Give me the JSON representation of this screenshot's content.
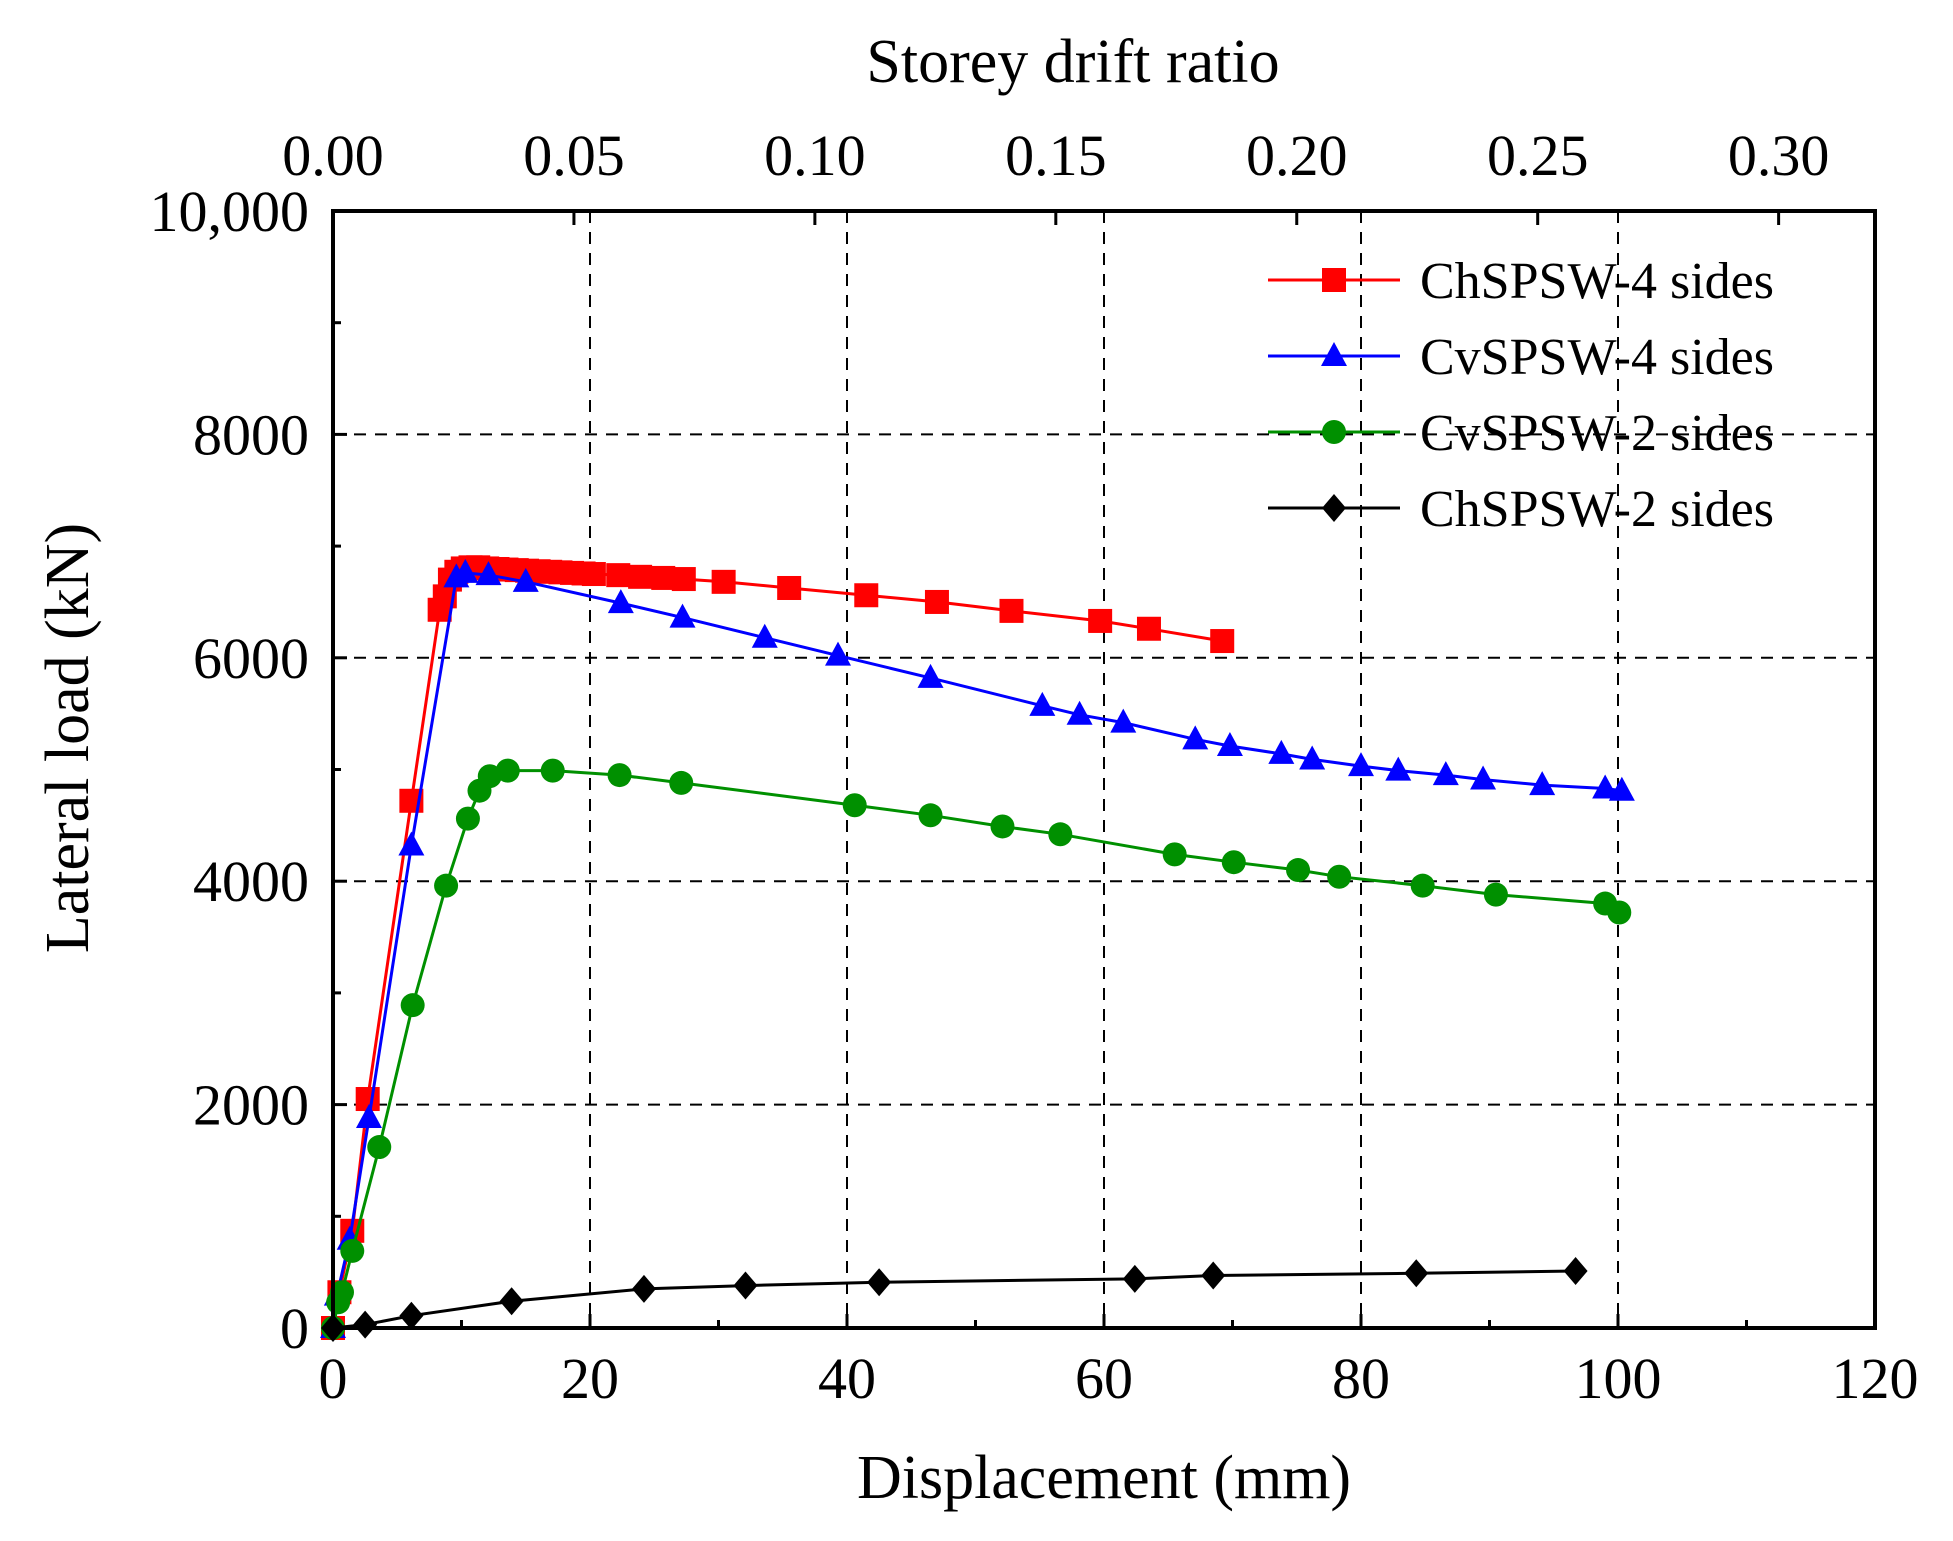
{
  "chart_data": {
    "type": "line",
    "title": "",
    "xlabel": "Displacement (mm)",
    "ylabel": "Lateral load (kN)",
    "x2label": "Storey drift ratio",
    "xlim": [
      0,
      120
    ],
    "ylim": [
      0,
      10000
    ],
    "x2lim": [
      0,
      0.32
    ],
    "grid": true,
    "legend_position": "top-right",
    "x_ticks": [
      {
        "value": 0,
        "label": "0"
      },
      {
        "value": 20,
        "label": "20"
      },
      {
        "value": 40,
        "label": "40"
      },
      {
        "value": 60,
        "label": "60"
      },
      {
        "value": 80,
        "label": "80"
      },
      {
        "value": 100,
        "label": "100"
      },
      {
        "value": 120,
        "label": "120"
      }
    ],
    "y_ticks": [
      {
        "value": 0,
        "label": "0"
      },
      {
        "value": 2000,
        "label": "2000"
      },
      {
        "value": 4000,
        "label": "4000"
      },
      {
        "value": 6000,
        "label": "6000"
      },
      {
        "value": 8000,
        "label": "8000"
      },
      {
        "value": 10000,
        "label": "10,000"
      }
    ],
    "x2_ticks": [
      {
        "value": 0.0,
        "label": "0.00"
      },
      {
        "value": 0.05,
        "label": "0.05"
      },
      {
        "value": 0.1,
        "label": "0.10"
      },
      {
        "value": 0.15,
        "label": "0.15"
      },
      {
        "value": 0.2,
        "label": "0.20"
      },
      {
        "value": 0.25,
        "label": "0.25"
      },
      {
        "value": 0.3,
        "label": "0.30"
      }
    ],
    "series": [
      {
        "name": "ChSPSW-4 sides",
        "color": "#ff0000",
        "marker": "square",
        "x": [
          0,
          0.5,
          1.5,
          2.7,
          6.1,
          8.3,
          8.7,
          9.1,
          9.6,
          10.1,
          10.7,
          11.3,
          12.0,
          12.8,
          13.5,
          14.3,
          15.1,
          16.0,
          16.9,
          17.7,
          18.6,
          19.5,
          20.3,
          22.2,
          23.9,
          25.7,
          27.3,
          30.4,
          35.5,
          41.5,
          47.0,
          52.8,
          59.7,
          63.5,
          69.2
        ],
        "y": [
          0,
          320,
          870,
          2050,
          4720,
          6430,
          6550,
          6700,
          6770,
          6800,
          6810,
          6810,
          6800,
          6795,
          6790,
          6785,
          6780,
          6775,
          6770,
          6765,
          6760,
          6755,
          6750,
          6740,
          6725,
          6715,
          6705,
          6680,
          6625,
          6560,
          6500,
          6420,
          6330,
          6260,
          6150
        ]
      },
      {
        "name": "CvSPSW-4 sides",
        "color": "#0000ff",
        "marker": "triangle",
        "x": [
          0,
          0.3,
          1.3,
          2.8,
          6.1,
          9.6,
          10.3,
          12.1,
          15.0,
          22.4,
          27.2,
          33.6,
          39.3,
          46.5,
          55.2,
          58.1,
          61.5,
          67.1,
          69.8,
          73.8,
          76.2,
          80.0,
          82.9,
          86.6,
          89.5,
          94.1,
          99.0,
          100.3
        ],
        "y": [
          0,
          290,
          790,
          1880,
          4320,
          6720,
          6760,
          6740,
          6680,
          6490,
          6360,
          6180,
          6020,
          5820,
          5570,
          5490,
          5420,
          5270,
          5210,
          5140,
          5090,
          5030,
          4990,
          4950,
          4910,
          4860,
          4830,
          4810
        ]
      },
      {
        "name": "CvSPSW-2 sides",
        "color": "#009000",
        "marker": "circle",
        "x": [
          0,
          0.4,
          0.7,
          1.5,
          3.6,
          6.2,
          8.8,
          10.5,
          11.4,
          12.2,
          13.6,
          17.1,
          22.3,
          27.1,
          40.6,
          46.5,
          52.1,
          56.6,
          65.5,
          70.1,
          75.1,
          78.3,
          84.8,
          90.5,
          99.0,
          100.1
        ],
        "y": [
          0,
          230,
          320,
          690,
          1620,
          2890,
          3960,
          4560,
          4810,
          4940,
          4990,
          4990,
          4950,
          4880,
          4680,
          4590,
          4490,
          4420,
          4240,
          4170,
          4100,
          4040,
          3960,
          3880,
          3800,
          3720
        ]
      },
      {
        "name": "ChSPSW-2 sides",
        "color": "#000000",
        "marker": "diamond",
        "x": [
          0,
          2.5,
          6.1,
          13.9,
          24.2,
          32.1,
          42.5,
          62.4,
          68.5,
          84.3,
          96.7
        ],
        "y": [
          0,
          30,
          110,
          240,
          350,
          380,
          410,
          440,
          470,
          490,
          510
        ]
      }
    ]
  }
}
